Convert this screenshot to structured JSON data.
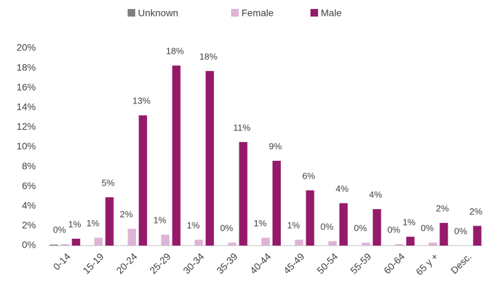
{
  "chart_data": {
    "type": "bar",
    "categories": [
      "0-14",
      "15-19",
      "20-24",
      "25-29",
      "30-34",
      "35-39",
      "40-44",
      "45-49",
      "50-54",
      "55-59",
      "60-64",
      "65 y +",
      "Desc."
    ],
    "series": [
      {
        "name": "Unknown",
        "color": "#808080",
        "values": [
          0.1,
          0,
          0,
          0,
          0,
          0,
          0,
          0,
          0,
          0,
          0,
          0,
          0
        ]
      },
      {
        "name": "Female",
        "color": "#ddb4d6",
        "values": [
          0.15,
          0.8,
          1.7,
          1.1,
          0.6,
          0.3,
          0.8,
          0.6,
          0.45,
          0.3,
          0.15,
          0.3,
          0
        ],
        "value_labels": [
          "0%",
          "1%",
          "2%",
          "1%",
          "1%",
          "0%",
          "1%",
          "1%",
          "0%",
          "0%",
          "0%",
          "0%",
          "0%"
        ]
      },
      {
        "name": "Male",
        "color": "#951b6a",
        "values": [
          0.7,
          4.9,
          13.2,
          18.25,
          17.7,
          10.5,
          8.6,
          5.6,
          4.3,
          3.7,
          0.9,
          2.3,
          2.0
        ],
        "value_labels": [
          "1%",
          "5%",
          "13%",
          "18%",
          "18%",
          "11%",
          "9%",
          "6%",
          "4%",
          "4%",
          "1%",
          "2%",
          "2%"
        ]
      }
    ],
    "ylim": [
      0,
      20
    ],
    "yticks": [
      {
        "value": 0,
        "label": "0%"
      },
      {
        "value": 2,
        "label": "2%"
      },
      {
        "value": 4,
        "label": "4%"
      },
      {
        "value": 6,
        "label": "6%"
      },
      {
        "value": 8,
        "label": "8%"
      },
      {
        "value": 10,
        "label": "10%"
      },
      {
        "value": 12,
        "label": "12%"
      },
      {
        "value": 14,
        "label": "14%"
      },
      {
        "value": 16,
        "label": "16%"
      },
      {
        "value": 18,
        "label": "18%"
      },
      {
        "value": 20,
        "label": "20%"
      }
    ],
    "grid": false,
    "legend": "top"
  }
}
